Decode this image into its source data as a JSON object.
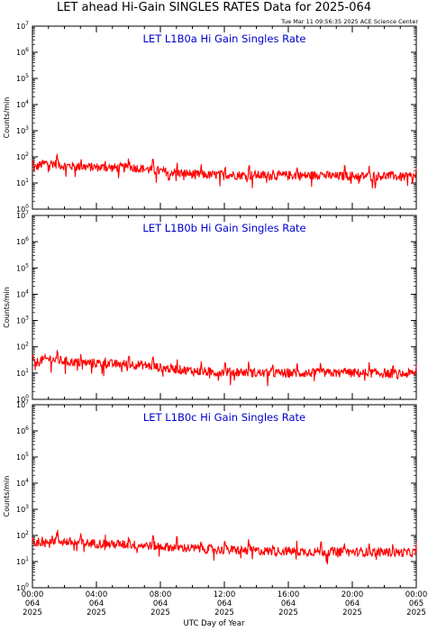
{
  "title": "LET ahead Hi-Gain SINGLES RATES Data for 2025-064",
  "timestamp": "Tue Mar 11 09:56:35 2025 ACE Science Center",
  "colors": {
    "axes": "#000000",
    "series": "#ff0000",
    "panel_title": "#0000cc",
    "background": "#ffffff"
  },
  "chart_data": [
    {
      "type": "line",
      "title": "LET L1B0a Hi Gain Singles Rate",
      "ylabel": "Counts/min",
      "xlabel": "",
      "yscale": "log",
      "ylim": [
        1,
        10000000
      ],
      "xlim": [
        0,
        24
      ],
      "grid": false,
      "series": [
        {
          "x": [
            0,
            0.5,
            1,
            2,
            3,
            4,
            5,
            6,
            7,
            8,
            9,
            10,
            11,
            12,
            13,
            14,
            15,
            16,
            17,
            18,
            19,
            20,
            21,
            22,
            23,
            24
          ],
          "values": [
            30,
            50,
            60,
            45,
            42,
            40,
            38,
            40,
            35,
            28,
            25,
            22,
            20,
            21,
            20,
            20,
            19,
            20,
            19,
            20,
            18,
            19,
            18,
            19,
            17,
            18
          ]
        }
      ]
    },
    {
      "type": "line",
      "title": "LET L1B0b Hi Gain Singles Rate",
      "ylabel": "Counts/min",
      "xlabel": "",
      "yscale": "log",
      "ylim": [
        1,
        10000000
      ],
      "xlim": [
        0,
        24
      ],
      "grid": false,
      "series": [
        {
          "x": [
            0,
            0.5,
            1,
            2,
            3,
            4,
            5,
            6,
            7,
            8,
            9,
            10,
            11,
            12,
            13,
            14,
            15,
            16,
            17,
            18,
            19,
            20,
            21,
            22,
            23,
            24
          ],
          "values": [
            20,
            30,
            35,
            28,
            25,
            24,
            22,
            22,
            20,
            16,
            14,
            12,
            11,
            11,
            11,
            10,
            10,
            10,
            10,
            10,
            10,
            10,
            10,
            10,
            9,
            10
          ]
        }
      ]
    },
    {
      "type": "line",
      "title": "LET L1B0c Hi Gain Singles Rate",
      "ylabel": "Counts/min",
      "xlabel": "UTC Day of Year",
      "yscale": "log",
      "ylim": [
        1,
        10000000
      ],
      "xlim": [
        0,
        24
      ],
      "grid": false,
      "x_ticks": [
        {
          "x": 0,
          "time": "00:00",
          "day": "064",
          "year": "2025"
        },
        {
          "x": 4,
          "time": "04:00",
          "day": "064",
          "year": "2025"
        },
        {
          "x": 8,
          "time": "08:00",
          "day": "064",
          "year": "2025"
        },
        {
          "x": 12,
          "time": "12:00",
          "day": "064",
          "year": "2025"
        },
        {
          "x": 16,
          "time": "16:00",
          "day": "064",
          "year": "2025"
        },
        {
          "x": 20,
          "time": "20:00",
          "day": "064",
          "year": "2025"
        },
        {
          "x": 24,
          "time": "00:00",
          "day": "065",
          "year": "2025"
        }
      ],
      "series": [
        {
          "x": [
            0,
            0.5,
            1,
            2,
            3,
            4,
            5,
            6,
            7,
            8,
            9,
            10,
            11,
            12,
            13,
            14,
            15,
            16,
            17,
            18,
            19,
            20,
            21,
            22,
            23,
            24
          ],
          "values": [
            45,
            60,
            70,
            58,
            52,
            50,
            46,
            45,
            42,
            38,
            35,
            32,
            30,
            28,
            27,
            26,
            25,
            25,
            24,
            24,
            24,
            23,
            23,
            23,
            22,
            22
          ]
        }
      ]
    }
  ]
}
